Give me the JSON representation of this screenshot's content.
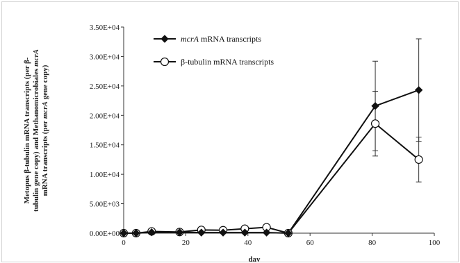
{
  "chart_data": {
    "type": "line",
    "xlabel": "day",
    "ylabel_lines": [
      [
        "Metopus β-tubulin mRNA transcripts (per β-",
        ""
      ],
      [
        "tubulin gene copy) and Methanomicrobiales ",
        "mcrA"
      ],
      [
        "mRNA transcripts (per ",
        "mcrA",
        " gene copy)"
      ]
    ],
    "xlim": [
      0,
      100
    ],
    "ylim": [
      0,
      35000
    ],
    "x_ticks": [
      0,
      20,
      40,
      60,
      80,
      100
    ],
    "y_ticks": [
      0,
      5000,
      10000,
      15000,
      20000,
      25000,
      30000,
      35000
    ],
    "x_tick_labels": [
      "0",
      "20",
      "40",
      "60",
      "80",
      "100"
    ],
    "y_tick_labels": [
      "0.00E+00",
      "5.00E+03",
      "1.00E+04",
      "1.50E+04",
      "2.00E+04",
      "2.50E+04",
      "3.00E+04",
      "3.50E+04"
    ],
    "legend_placement": "top-left",
    "series": [
      {
        "name_italic": "mcrA",
        "name_rest": " mRNA transcripts",
        "marker": "filled-diamond",
        "x": [
          0,
          4,
          9,
          18,
          25,
          32,
          39,
          46,
          53,
          81,
          95
        ],
        "y": [
          0,
          0,
          150,
          150,
          100,
          100,
          100,
          100,
          0,
          21600,
          24300
        ],
        "err": [
          0,
          0,
          0,
          0,
          0,
          0,
          0,
          0,
          0,
          7600,
          8700
        ]
      },
      {
        "name_italic": "",
        "name_rest": "β-tubulin mRNA transcripts",
        "marker": "open-circle",
        "x": [
          0,
          4,
          9,
          18,
          25,
          32,
          39,
          46,
          53,
          81,
          95
        ],
        "y": [
          0,
          0,
          300,
          200,
          550,
          500,
          750,
          1000,
          0,
          18600,
          12500
        ],
        "err": [
          0,
          0,
          0,
          0,
          0,
          0,
          0,
          0,
          0,
          5500,
          3800
        ]
      }
    ]
  }
}
